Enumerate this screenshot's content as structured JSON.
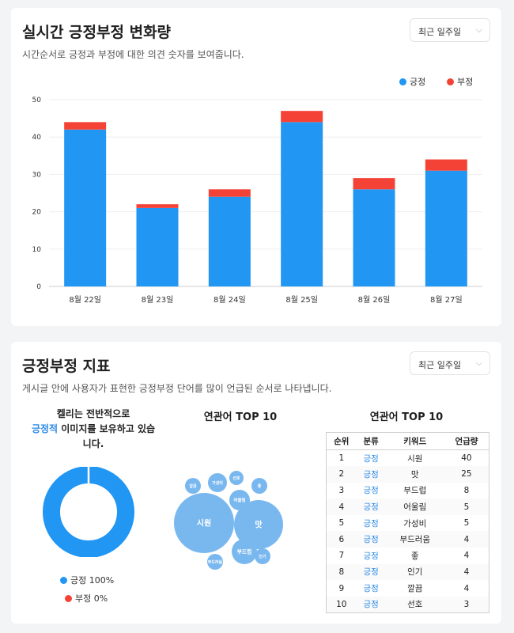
{
  "colors": {
    "positive": "#2196f3",
    "negative": "#f44336",
    "accent_text": "#2d8ae6"
  },
  "card_trend": {
    "title": "실시간 긍정부정 변화량",
    "subtitle": "시간순서로 긍정과 부정에 대한 의견 숫자를 보여줍니다.",
    "period_select": {
      "value": "최근 일주일",
      "icon": "chevron-down-icon"
    },
    "legend": [
      {
        "label": "긍정"
      },
      {
        "label": "부정"
      }
    ]
  },
  "chart_data": [
    {
      "type": "bar",
      "stacked": true,
      "categories": [
        "8월 22일",
        "8월 23일",
        "8월 24일",
        "8월 25일",
        "8월 26일",
        "8월 27일"
      ],
      "series": [
        {
          "name": "긍정",
          "color": "#2196f3",
          "values": [
            42,
            21,
            24,
            44,
            26,
            31
          ]
        },
        {
          "name": "부정",
          "color": "#f44336",
          "values": [
            2,
            1,
            2,
            3,
            3,
            3
          ]
        }
      ],
      "ylim": [
        0,
        50
      ],
      "yticks": [
        0,
        10,
        20,
        30,
        40,
        50
      ],
      "grid": true,
      "legend_position": "top-right"
    },
    {
      "type": "pie",
      "donut": true,
      "labels": [
        "긍정",
        "부정"
      ],
      "values": [
        100,
        0
      ],
      "colors": [
        "#2196f3",
        "#f44336"
      ]
    }
  ],
  "card_index": {
    "title": "긍정부정 지표",
    "subtitle": "게시글 안에 사용자가 표현한 긍정부정 단어를 많이 언급된 순서로 나타냅니다.",
    "period_select": {
      "value": "최근 일주일",
      "icon": "chevron-down-icon"
    },
    "summary": {
      "line1": "켈리는 전반적으로",
      "highlight": "긍정적",
      "line2_rest": " 이미지를 보유하고 있습",
      "line3": "니다."
    },
    "donut_legend": [
      {
        "label": "긍정 100%"
      },
      {
        "label": "부정 0%"
      }
    ],
    "bubble_title": "연관어 TOP 10",
    "bubbles": [
      {
        "label": "시원",
        "value": 40
      },
      {
        "label": "맛",
        "value": 25
      },
      {
        "label": "부드럽",
        "value": 8
      },
      {
        "label": "어울림",
        "value": 5
      },
      {
        "label": "가성비",
        "value": 5
      },
      {
        "label": "부드러움",
        "value": 4
      },
      {
        "label": "좋",
        "value": 4
      },
      {
        "label": "인기",
        "value": 4
      },
      {
        "label": "깔끔",
        "value": 4
      },
      {
        "label": "선호",
        "value": 3
      }
    ],
    "table_title": "연관어 TOP 10",
    "table": {
      "headers": [
        "순위",
        "분류",
        "키워드",
        "언급량"
      ],
      "rows": [
        [
          "1",
          "긍정",
          "시원",
          "40"
        ],
        [
          "2",
          "긍정",
          "맛",
          "25"
        ],
        [
          "3",
          "긍정",
          "부드럽",
          "8"
        ],
        [
          "4",
          "긍정",
          "어울림",
          "5"
        ],
        [
          "5",
          "긍정",
          "가성비",
          "5"
        ],
        [
          "6",
          "긍정",
          "부드러움",
          "4"
        ],
        [
          "7",
          "긍정",
          "좋",
          "4"
        ],
        [
          "8",
          "긍정",
          "인기",
          "4"
        ],
        [
          "9",
          "긍정",
          "깔끔",
          "4"
        ],
        [
          "10",
          "긍정",
          "선호",
          "3"
        ]
      ]
    }
  }
}
